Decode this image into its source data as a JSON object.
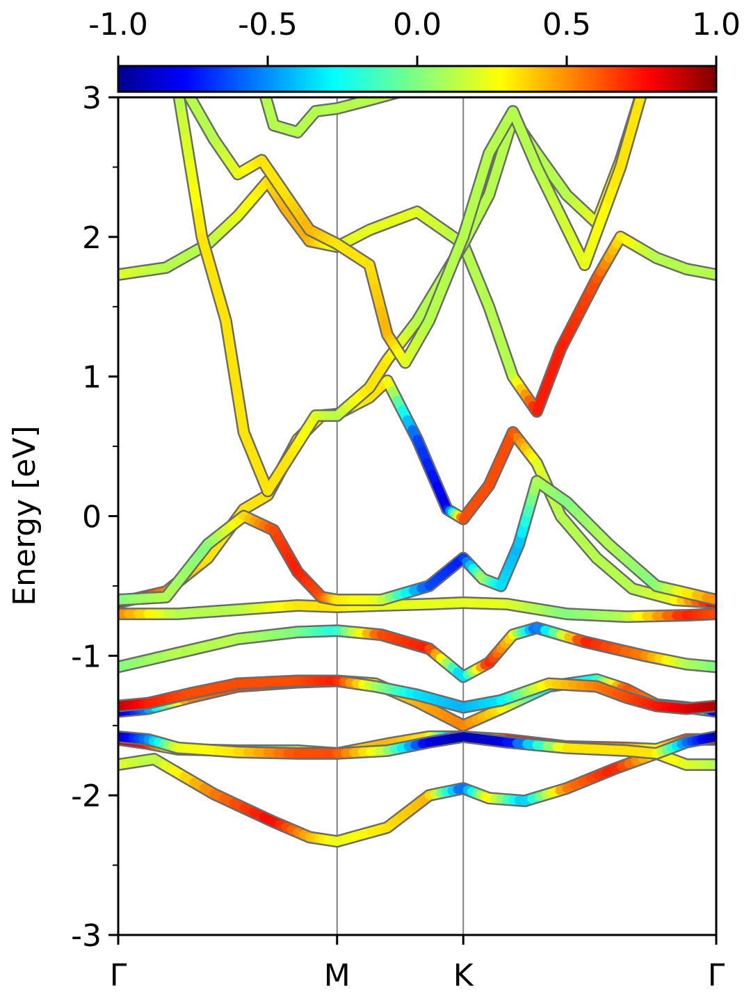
{
  "chart_data": {
    "type": "line",
    "title": "",
    "xlabel": "",
    "ylabel": "Energy [eV]",
    "ylim": [
      -3,
      3
    ],
    "yticks": [
      {
        "v": 3,
        "label": "3"
      },
      {
        "v": 2,
        "label": "2"
      },
      {
        "v": 1,
        "label": "1"
      },
      {
        "v": 0,
        "label": "0"
      },
      {
        "v": -1,
        "label": "-1"
      },
      {
        "v": -2,
        "label": "-2"
      },
      {
        "v": -3,
        "label": "-3"
      }
    ],
    "kpoints": [
      {
        "label": "Γ",
        "x": 0.0
      },
      {
        "label": "M",
        "x": 0.366
      },
      {
        "label": "K",
        "x": 0.577
      },
      {
        "label": "Γ",
        "x": 1.0
      }
    ],
    "colorbar": {
      "colormap": "jet",
      "range": [
        -1.0,
        1.0
      ],
      "ticks": [
        {
          "v": -1.0,
          "label": "-1.0"
        },
        {
          "v": -0.5,
          "label": "-0.5"
        },
        {
          "v": 0.0,
          "label": "0.0"
        },
        {
          "v": 0.5,
          "label": "0.5"
        },
        {
          "v": 1.0,
          "label": "1.0"
        }
      ]
    },
    "series": [
      {
        "points": [
          [
            0.0,
            -1.78,
            0.2
          ],
          [
            0.06,
            -1.74,
            0.1
          ],
          [
            0.16,
            -1.99,
            0.5
          ],
          [
            0.26,
            -2.19,
            0.75
          ],
          [
            0.32,
            -2.3,
            0.4
          ],
          [
            0.366,
            -2.33,
            0.2
          ],
          [
            0.45,
            -2.23,
            0.3
          ],
          [
            0.52,
            -2.0,
            0.4
          ],
          [
            0.577,
            -1.95,
            -0.6
          ],
          [
            0.62,
            -2.02,
            0.3
          ],
          [
            0.68,
            -2.04,
            -0.4
          ],
          [
            0.75,
            -1.95,
            0.5
          ],
          [
            0.83,
            -1.81,
            0.7
          ],
          [
            0.9,
            -1.7,
            0.3
          ],
          [
            0.95,
            -1.78,
            0.2
          ],
          [
            1.0,
            -1.78,
            0.1
          ]
        ]
      },
      {
        "points": [
          [
            0.0,
            -1.6,
            0.9
          ],
          [
            0.05,
            -1.63,
            0.7
          ],
          [
            0.1,
            -1.67,
            0.0
          ],
          [
            0.2,
            -1.68,
            -0.2
          ],
          [
            0.3,
            -1.68,
            0.1
          ],
          [
            0.366,
            -1.7,
            0.3
          ],
          [
            0.45,
            -1.63,
            0.4
          ],
          [
            0.52,
            -1.58,
            0.3
          ],
          [
            0.577,
            -1.58,
            -0.8
          ],
          [
            0.65,
            -1.6,
            0.7
          ],
          [
            0.75,
            -1.65,
            0.7
          ],
          [
            0.85,
            -1.66,
            0.5
          ],
          [
            0.9,
            -1.67,
            0.2
          ],
          [
            0.95,
            -1.6,
            0.6
          ],
          [
            1.0,
            -1.6,
            0.9
          ]
        ]
      },
      {
        "points": [
          [
            0.0,
            -1.58,
            -0.9
          ],
          [
            0.05,
            -1.6,
            -0.5
          ],
          [
            0.1,
            -1.66,
            0.2
          ],
          [
            0.2,
            -1.69,
            0.3
          ],
          [
            0.3,
            -1.7,
            0.6
          ],
          [
            0.366,
            -1.7,
            0.6
          ],
          [
            0.45,
            -1.68,
            0.1
          ],
          [
            0.52,
            -1.62,
            -0.8
          ],
          [
            0.577,
            -1.58,
            -0.9
          ],
          [
            0.65,
            -1.62,
            -0.8
          ],
          [
            0.75,
            -1.66,
            0.3
          ],
          [
            0.85,
            -1.68,
            0.3
          ],
          [
            0.9,
            -1.7,
            0.3
          ],
          [
            0.95,
            -1.62,
            -0.5
          ],
          [
            1.0,
            -1.58,
            -0.9
          ]
        ]
      },
      {
        "points": [
          [
            0.0,
            -1.4,
            -0.9
          ],
          [
            0.05,
            -1.38,
            -0.5
          ],
          [
            0.12,
            -1.3,
            0.5
          ],
          [
            0.2,
            -1.22,
            0.6
          ],
          [
            0.3,
            -1.19,
            0.6
          ],
          [
            0.366,
            -1.18,
            0.6
          ],
          [
            0.43,
            -1.2,
            0.3
          ],
          [
            0.5,
            -1.33,
            0.4
          ],
          [
            0.577,
            -1.5,
            0.5
          ],
          [
            0.64,
            -1.38,
            0.3
          ],
          [
            0.72,
            -1.22,
            -0.3
          ],
          [
            0.8,
            -1.17,
            -0.2
          ],
          [
            0.85,
            -1.24,
            0.6
          ],
          [
            0.9,
            -1.35,
            0.5
          ],
          [
            0.95,
            -1.37,
            0.7
          ],
          [
            1.0,
            -1.4,
            -0.9
          ]
        ]
      },
      {
        "points": [
          [
            0.0,
            -1.36,
            0.9
          ],
          [
            0.05,
            -1.34,
            0.7
          ],
          [
            0.12,
            -1.27,
            0.6
          ],
          [
            0.2,
            -1.2,
            0.6
          ],
          [
            0.3,
            -1.18,
            0.6
          ],
          [
            0.366,
            -1.18,
            0.7
          ],
          [
            0.43,
            -1.22,
            0.1
          ],
          [
            0.5,
            -1.28,
            -0.3
          ],
          [
            0.577,
            -1.37,
            -0.4
          ],
          [
            0.64,
            -1.32,
            -0.3
          ],
          [
            0.72,
            -1.2,
            0.3
          ],
          [
            0.8,
            -1.22,
            0.5
          ],
          [
            0.85,
            -1.3,
            0.6
          ],
          [
            0.9,
            -1.36,
            0.7
          ],
          [
            0.95,
            -1.38,
            0.8
          ],
          [
            1.0,
            -1.36,
            0.9
          ]
        ]
      },
      {
        "points": [
          [
            0.0,
            -1.08,
            0.0
          ],
          [
            0.1,
            -0.98,
            0.1
          ],
          [
            0.2,
            -0.88,
            0.1
          ],
          [
            0.3,
            -0.83,
            0.0
          ],
          [
            0.366,
            -0.82,
            -0.2
          ],
          [
            0.44,
            -0.85,
            0.6
          ],
          [
            0.52,
            -0.95,
            0.7
          ],
          [
            0.577,
            -1.15,
            -0.4
          ],
          [
            0.62,
            -1.05,
            0.7
          ],
          [
            0.66,
            -0.85,
            0.3
          ],
          [
            0.7,
            -0.8,
            -0.6
          ],
          [
            0.78,
            -0.9,
            0.7
          ],
          [
            0.88,
            -1.0,
            0.5
          ],
          [
            0.95,
            -1.06,
            0.1
          ],
          [
            1.0,
            -1.08,
            0.0
          ]
        ]
      },
      {
        "points": [
          [
            0.0,
            -0.7,
            0.5
          ],
          [
            0.1,
            -0.7,
            0.1
          ],
          [
            0.2,
            -0.67,
            0.1
          ],
          [
            0.3,
            -0.64,
            0.3
          ],
          [
            0.366,
            -0.65,
            0.3
          ],
          [
            0.44,
            -0.64,
            0.2
          ],
          [
            0.52,
            -0.63,
            0.2
          ],
          [
            0.577,
            -0.62,
            0.2
          ],
          [
            0.65,
            -0.63,
            0.2
          ],
          [
            0.75,
            -0.7,
            0.0
          ],
          [
            0.85,
            -0.72,
            0.1
          ],
          [
            0.95,
            -0.71,
            0.7
          ],
          [
            1.0,
            -0.7,
            0.6
          ]
        ]
      },
      {
        "points": [
          [
            0.0,
            -0.62,
            0.9
          ],
          [
            0.08,
            -0.54,
            0.5
          ],
          [
            0.15,
            -0.3,
            0.3
          ],
          [
            0.21,
            0.05,
            0.3
          ],
          [
            0.25,
            0.15,
            0.3
          ],
          [
            0.3,
            0.55,
            0.3
          ],
          [
            0.34,
            0.72,
            0.3
          ],
          [
            0.366,
            0.73,
            0.2
          ],
          [
            0.42,
            0.85,
            0.3
          ],
          [
            0.45,
            0.97,
            0.3
          ],
          [
            0.5,
            0.55,
            -0.6
          ],
          [
            0.55,
            0.05,
            -0.8
          ],
          [
            0.577,
            -0.02,
            0.6
          ],
          [
            0.62,
            0.22,
            0.6
          ],
          [
            0.66,
            0.6,
            0.6
          ],
          [
            0.7,
            0.38,
            0.2
          ],
          [
            0.74,
            0.0,
            0.1
          ],
          [
            0.8,
            -0.3,
            0.1
          ],
          [
            0.86,
            -0.52,
            0.1
          ],
          [
            0.93,
            -0.6,
            0.2
          ],
          [
            1.0,
            -0.62,
            0.8
          ]
        ]
      },
      {
        "points": [
          [
            0.0,
            -0.6,
            0.0
          ],
          [
            0.08,
            -0.58,
            0.1
          ],
          [
            0.15,
            -0.2,
            0.0
          ],
          [
            0.21,
            0.0,
            0.3
          ],
          [
            0.26,
            -0.1,
            0.6
          ],
          [
            0.3,
            -0.4,
            0.7
          ],
          [
            0.34,
            -0.58,
            0.6
          ],
          [
            0.366,
            -0.6,
            0.3
          ],
          [
            0.44,
            -0.6,
            0.2
          ],
          [
            0.52,
            -0.5,
            -0.6
          ],
          [
            0.577,
            -0.3,
            -0.7
          ],
          [
            0.61,
            -0.45,
            0.1
          ],
          [
            0.64,
            -0.5,
            -0.3
          ],
          [
            0.67,
            -0.2,
            -0.4
          ],
          [
            0.7,
            0.25,
            0.1
          ],
          [
            0.75,
            0.1,
            0.0
          ],
          [
            0.82,
            -0.2,
            0.1
          ],
          [
            0.9,
            -0.5,
            0.0
          ],
          [
            1.0,
            -0.6,
            0.5
          ]
        ]
      },
      {
        "points": [
          [
            0.0,
            1.73,
            0.2
          ],
          [
            0.08,
            1.78,
            0.1
          ],
          [
            0.15,
            1.95,
            0.1
          ],
          [
            0.2,
            2.15,
            0.2
          ],
          [
            0.25,
            2.4,
            0.3
          ],
          [
            0.28,
            2.2,
            0.4
          ],
          [
            0.32,
            1.97,
            0.4
          ],
          [
            0.366,
            1.93,
            0.2
          ],
          [
            0.42,
            2.05,
            0.2
          ],
          [
            0.5,
            2.18,
            0.2
          ],
          [
            0.577,
            1.95,
            0.1
          ],
          [
            0.62,
            1.5,
            0.1
          ],
          [
            0.66,
            1.0,
            0.1
          ],
          [
            0.7,
            0.75,
            0.7
          ],
          [
            0.74,
            1.2,
            0.7
          ],
          [
            0.8,
            1.7,
            0.6
          ],
          [
            0.84,
            2.0,
            0.3
          ],
          [
            0.9,
            1.85,
            0.1
          ],
          [
            0.95,
            1.77,
            0.1
          ],
          [
            1.0,
            1.73,
            0.1
          ]
        ]
      },
      {
        "points": [
          [
            0.0,
            3.1,
            0.1
          ],
          [
            0.1,
            3.05,
            0.1
          ],
          [
            0.14,
            2.0,
            0.3
          ],
          [
            0.18,
            1.4,
            0.3
          ],
          [
            0.21,
            0.6,
            0.3
          ],
          [
            0.25,
            0.18,
            0.3
          ],
          [
            0.29,
            0.45,
            0.3
          ],
          [
            0.33,
            0.72,
            0.2
          ],
          [
            0.366,
            0.72,
            0.1
          ],
          [
            0.42,
            0.92,
            0.3
          ],
          [
            0.45,
            1.12,
            0.3
          ],
          [
            0.5,
            1.4,
            0.1
          ],
          [
            0.577,
            1.95,
            0.1
          ],
          [
            0.62,
            2.3,
            0.1
          ],
          [
            0.66,
            2.85,
            0.1
          ],
          [
            0.7,
            2.6,
            0.1
          ],
          [
            0.75,
            2.3,
            0.1
          ],
          [
            0.8,
            2.1,
            0.2
          ],
          [
            0.84,
            2.55,
            0.3
          ],
          [
            0.88,
            3.1,
            0.2
          ]
        ]
      },
      {
        "points": [
          [
            0.1,
            3.15,
            0.1
          ],
          [
            0.16,
            2.7,
            0.1
          ],
          [
            0.2,
            2.45,
            0.2
          ],
          [
            0.24,
            2.55,
            0.3
          ],
          [
            0.28,
            2.3,
            0.3
          ],
          [
            0.32,
            2.05,
            0.4
          ],
          [
            0.366,
            1.95,
            0.3
          ],
          [
            0.42,
            1.8,
            0.3
          ],
          [
            0.45,
            1.3,
            0.4
          ],
          [
            0.48,
            1.1,
            0.2
          ],
          [
            0.52,
            1.4,
            0.1
          ],
          [
            0.577,
            2.0,
            0.1
          ],
          [
            0.62,
            2.6,
            0.1
          ],
          [
            0.66,
            2.9,
            0.1
          ],
          [
            0.7,
            2.5,
            0.1
          ],
          [
            0.78,
            1.8,
            0.2
          ],
          [
            0.84,
            2.5,
            0.3
          ],
          [
            0.88,
            3.1,
            0.3
          ]
        ]
      },
      {
        "points": [
          [
            0.24,
            3.1,
            0.1
          ],
          [
            0.26,
            2.8,
            0.1
          ],
          [
            0.3,
            2.75,
            0.1
          ],
          [
            0.33,
            2.9,
            0.1
          ],
          [
            0.366,
            2.92,
            0.1
          ],
          [
            0.42,
            2.98,
            0.1
          ],
          [
            0.48,
            3.05,
            0.1
          ]
        ]
      }
    ]
  }
}
